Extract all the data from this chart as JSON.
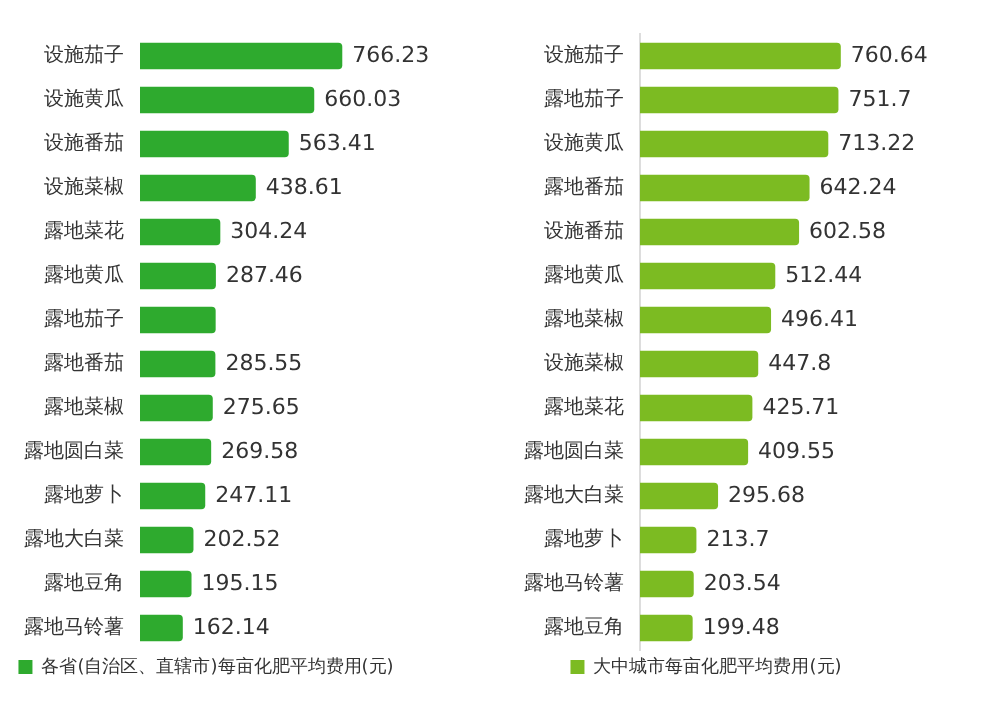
{
  "chart_data": [
    {
      "type": "bar",
      "orientation": "horizontal",
      "legend": "bottom",
      "categories": [
        "设施茄子",
        "设施黄瓜",
        "设施番茄",
        "设施菜椒",
        "露地菜花",
        "露地黄瓜",
        "露地茄子",
        "露地番茄",
        "露地菜椒",
        "露地圆白菜",
        "露地萝卜",
        "露地大白菜",
        "露地豆角",
        "露地马铃薯"
      ],
      "series": [
        {
          "name": "各省(自治区、直辖市)每亩化肥平均费用(元)",
          "color": "#2eaa2e",
          "values": [
            766.23,
            660.03,
            563.41,
            438.61,
            304.24,
            287.46,
            286.6,
            285.55,
            275.65,
            269.58,
            247.11,
            202.52,
            195.15,
            162.14
          ],
          "value_labels": [
            "766.23",
            "660.03",
            "563.41",
            "438.61",
            "304.24",
            "287.46",
            null,
            "285.55",
            "275.65",
            "269.58",
            "247.11",
            "202.52",
            "195.15",
            "162.14"
          ]
        }
      ]
    },
    {
      "type": "bar",
      "orientation": "horizontal",
      "legend": "bottom",
      "categories": [
        "设施茄子",
        "露地茄子",
        "设施黄瓜",
        "露地番茄",
        "设施番茄",
        "露地黄瓜",
        "露地菜椒",
        "设施菜椒",
        "露地菜花",
        "露地圆白菜",
        "露地大白菜",
        "露地萝卜",
        "露地马铃薯",
        "露地豆角"
      ],
      "series": [
        {
          "name": "大中城市每亩化肥平均费用(元)",
          "color": "#7cbb22",
          "values": [
            760.64,
            751.7,
            713.22,
            642.24,
            602.58,
            512.44,
            496.41,
            447.8,
            425.71,
            409.55,
            295.68,
            213.7,
            203.54,
            199.48
          ],
          "value_labels": [
            "760.64",
            "751.7",
            "713.22",
            "642.24",
            "602.58",
            "512.44",
            "496.41",
            "447.8",
            "425.71",
            "409.55",
            "295.68",
            "213.7",
            "203.54",
            "199.48"
          ]
        }
      ]
    }
  ]
}
